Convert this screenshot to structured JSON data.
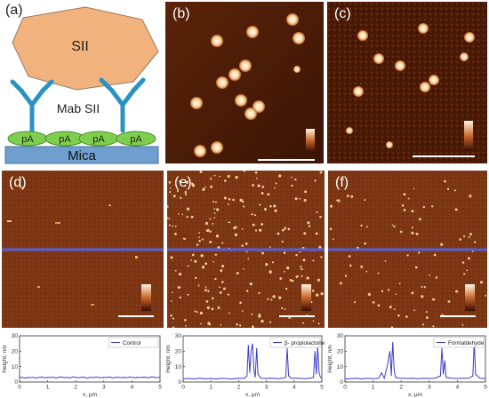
{
  "panel_labels": {
    "a": "(a)",
    "b": "(b)",
    "c": "(c)",
    "d": "(d)",
    "e": "(e)",
    "f": "(f)"
  },
  "schematic": {
    "antigen_label": "SII",
    "antibody_label": "Mab SII",
    "protein_label": "pA",
    "substrate_label": "Mica",
    "colors": {
      "antigen": "#f2b27d",
      "antibody": "#2a93c2",
      "protein": "#7fcf4f",
      "substrate": "#6f9fcf"
    }
  },
  "profile_colors": {
    "line": "#3a3acc",
    "scan_line": "#5560d8"
  },
  "chart_data": [
    {
      "type": "line",
      "panel": "d",
      "xlabel": "x, µm",
      "ylabel": "Height, nm",
      "xlim": [
        0,
        5
      ],
      "ylim": [
        0,
        30
      ],
      "xticks": [
        "0",
        "1",
        "2",
        "3",
        "4",
        "5"
      ],
      "yticks": [
        "0",
        "10",
        "20",
        "30"
      ],
      "series": [
        {
          "name": "Control",
          "x": [
            0,
            0.1,
            0.2,
            0.3,
            0.4,
            0.5,
            0.6,
            0.7,
            0.8,
            0.9,
            1.0,
            1.1,
            1.2,
            1.3,
            1.4,
            1.5,
            1.6,
            1.7,
            1.8,
            1.9,
            2.0,
            2.1,
            2.2,
            2.3,
            2.4,
            2.5,
            2.6,
            2.7,
            2.8,
            2.9,
            3.0,
            3.1,
            3.2,
            3.3,
            3.4,
            3.5,
            3.6,
            3.7,
            3.8,
            3.9,
            4.0,
            4.1,
            4.2,
            4.3,
            4.4,
            4.5,
            4.6,
            4.7,
            4.8,
            4.9,
            5.0
          ],
          "y": [
            3,
            3,
            2.5,
            3,
            2.8,
            3,
            2.6,
            3,
            3.2,
            2.7,
            3,
            2.9,
            3.1,
            2.6,
            3,
            3.3,
            2.8,
            3,
            2.6,
            3.4,
            3,
            2.7,
            3,
            3.1,
            2.5,
            3,
            2.8,
            3.2,
            3,
            2.7,
            3,
            2.9,
            3.3,
            2.6,
            3,
            3.1,
            2.8,
            3,
            2.7,
            3.2,
            3,
            2.8,
            3,
            2.9,
            3.1,
            3,
            2.7,
            3.4,
            3,
            2.8,
            3
          ]
        }
      ]
    },
    {
      "type": "line",
      "panel": "e",
      "xlabel": "x, µm",
      "ylabel": "Height, nm",
      "xlim": [
        0,
        5
      ],
      "ylim": [
        0,
        30
      ],
      "xticks": [
        "0",
        "1",
        "2",
        "3",
        "4",
        "5"
      ],
      "yticks": [
        "0",
        "10",
        "20",
        "30"
      ],
      "series": [
        {
          "name": "β- propiolactone",
          "x": [
            0,
            0.2,
            0.4,
            0.6,
            0.8,
            1.0,
            1.2,
            1.4,
            1.6,
            1.8,
            2.0,
            2.2,
            2.3,
            2.35,
            2.4,
            2.45,
            2.5,
            2.55,
            2.6,
            2.65,
            2.7,
            2.8,
            3.0,
            3.2,
            3.4,
            3.6,
            3.7,
            3.75,
            3.8,
            3.9,
            4.0,
            4.2,
            4.4,
            4.6,
            4.7,
            4.75,
            4.8,
            4.85,
            4.9,
            4.95,
            5.0
          ],
          "y": [
            2,
            2.3,
            2,
            2.4,
            2.1,
            2.3,
            2,
            2.4,
            2.2,
            2,
            2.5,
            2.3,
            4,
            24,
            6,
            20,
            25,
            8,
            3,
            22,
            5,
            2.5,
            2.3,
            2.5,
            2.2,
            2.4,
            3,
            22,
            4,
            2.3,
            2.5,
            2.4,
            2.2,
            2.6,
            3,
            20,
            5,
            23,
            6,
            3,
            2.5
          ]
        }
      ]
    },
    {
      "type": "line",
      "panel": "f",
      "xlabel": "x, µm",
      "ylabel": "Height, nm",
      "xlim": [
        0,
        5
      ],
      "ylim": [
        0,
        30
      ],
      "xticks": [
        "0",
        "1",
        "2",
        "3",
        "4",
        "5"
      ],
      "yticks": [
        "0",
        "10",
        "20",
        "30"
      ],
      "series": [
        {
          "name": "Formaldehyde",
          "x": [
            0,
            0.2,
            0.4,
            0.6,
            0.8,
            1.0,
            1.2,
            1.3,
            1.4,
            1.5,
            1.6,
            1.65,
            1.7,
            1.75,
            1.8,
            1.9,
            2.0,
            2.2,
            2.4,
            2.6,
            2.8,
            3.0,
            3.2,
            3.4,
            3.45,
            3.5,
            3.55,
            3.6,
            3.8,
            4.0,
            4.2,
            4.4,
            4.55,
            4.6,
            4.65,
            4.8,
            5.0
          ],
          "y": [
            2,
            2.2,
            2.4,
            2,
            2.5,
            2.2,
            2.4,
            6,
            2.5,
            10,
            20,
            4,
            26,
            8,
            3,
            2.6,
            2.4,
            2.3,
            2.5,
            2.2,
            2.4,
            2.3,
            2.5,
            4,
            22,
            5,
            14,
            3,
            2.4,
            2.3,
            2.5,
            2.4,
            4,
            26,
            5,
            2.5,
            2.3
          ]
        }
      ]
    }
  ]
}
